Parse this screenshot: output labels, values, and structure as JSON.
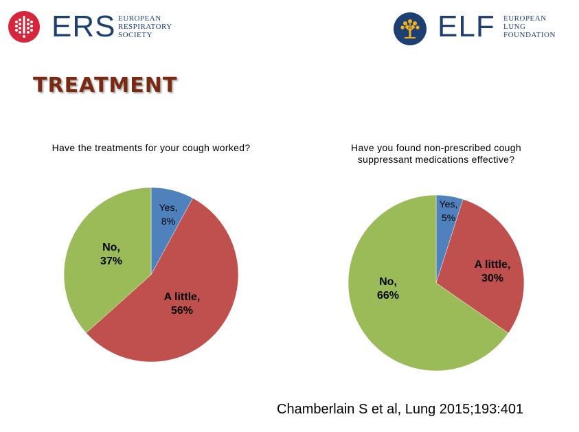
{
  "header": {
    "ers_logo": {
      "word": "ERS",
      "subtitle_lines": [
        "EUROPEAN",
        "RESPIRATORY",
        "SOCIETY"
      ],
      "color": "#1d3f72",
      "accent": "#d6263d"
    },
    "elf_logo": {
      "word": "ELF",
      "subtitle_lines": [
        "EUROPEAN",
        "LUNG",
        "FOUNDATION"
      ],
      "color": "#1d3f72",
      "accent": "#f2b21c"
    }
  },
  "slide_title": "TREATMENT",
  "citation": "Chamberlain S et al, Lung 2015;193:401",
  "chart_data": [
    {
      "type": "pie",
      "title": "Have the treatments for your cough worked?",
      "slices": [
        {
          "label": "Yes,",
          "value_label": "8%",
          "value": 8,
          "color": "#4f81bd"
        },
        {
          "label": "A little,",
          "value_label": "56%",
          "value": 56,
          "color": "#c0504d"
        },
        {
          "label": "No,",
          "value_label": "37%",
          "value": 37,
          "color": "#9bbb59"
        }
      ]
    },
    {
      "type": "pie",
      "title": "Have you found non-prescribed cough suppressant medications effective?",
      "slices": [
        {
          "label": "Yes,",
          "value_label": "5%",
          "value": 5,
          "color": "#4f81bd"
        },
        {
          "label": "A little,",
          "value_label": "30%",
          "value": 30,
          "color": "#c0504d"
        },
        {
          "label": "No,",
          "value_label": "66%",
          "value": 66,
          "color": "#9bbb59"
        }
      ]
    }
  ]
}
